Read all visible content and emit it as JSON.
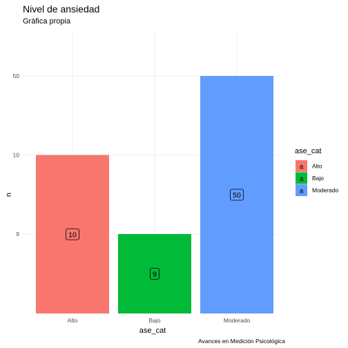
{
  "chart_data": {
    "type": "bar",
    "title": "Nivel de ansiedad",
    "subtitle": "Gráfica propia",
    "caption": "Avances en Medición Psicológica",
    "xlabel": "ase_cat",
    "ylabel": "n",
    "categories": [
      "Alto",
      "Bajo",
      "Moderado"
    ],
    "values": [
      10,
      9,
      50
    ],
    "data_labels": [
      "10",
      "9",
      "50"
    ],
    "y_ticks": [
      "9",
      "10",
      "50"
    ],
    "y_axis_note": "discrete categorical axis; ticks ordered 9, 10, 50 from bottom to top",
    "colors": [
      "#F8766D",
      "#00BA38",
      "#619CFF"
    ],
    "grid": true,
    "legend": {
      "title": "ase_cat",
      "position": "right",
      "key_glyph": "a",
      "entries": [
        "Alto",
        "Bajo",
        "Moderado"
      ]
    }
  }
}
